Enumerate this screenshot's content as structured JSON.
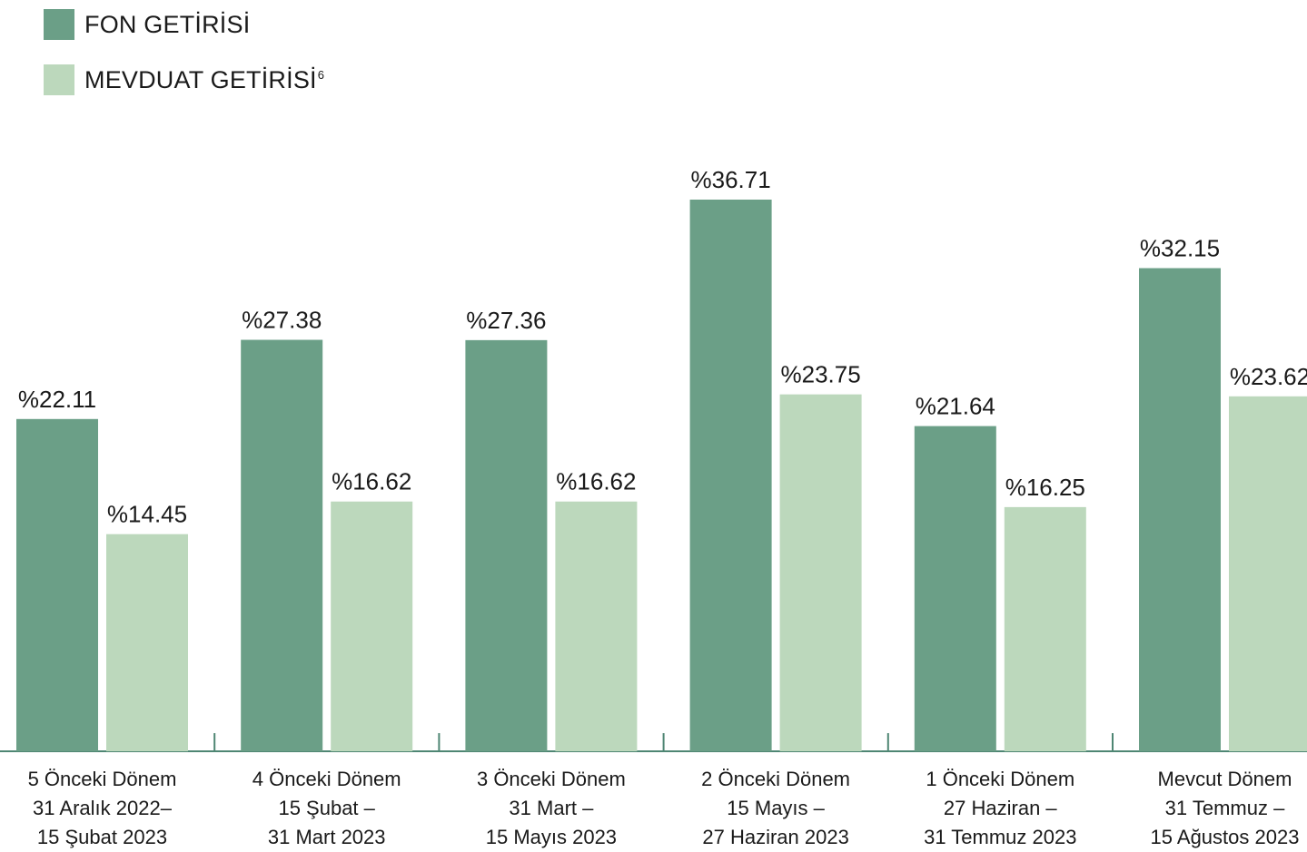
{
  "legend": {
    "fon": {
      "label": "FON GETİRİSİ",
      "color": "#6b9f87"
    },
    "mevduat": {
      "label": "MEVDUAT GETİRİSİ",
      "superscript": "6",
      "color": "#bcd8bc"
    }
  },
  "chart_data": {
    "type": "bar",
    "axis_color": "#4e8673",
    "categories": [
      [
        "5 Önceki Dönem",
        "31 Aralık 2022–",
        "15 Şubat 2023"
      ],
      [
        "4 Önceki Dönem",
        "15 Şubat –",
        "31 Mart 2023"
      ],
      [
        "3 Önceki Dönem",
        "31 Mart –",
        "15 Mayıs 2023"
      ],
      [
        "2 Önceki Dönem",
        "15 Mayıs –",
        "27 Haziran 2023"
      ],
      [
        "1 Önceki Dönem",
        "27 Haziran –",
        "31 Temmuz 2023"
      ],
      [
        "Mevcut Dönem",
        "31 Temmuz –",
        "15 Ağustos 2023"
      ]
    ],
    "series": [
      {
        "name": "FON GETİRİSİ",
        "color": "#6b9f87",
        "values": [
          22.11,
          27.38,
          27.36,
          36.71,
          21.64,
          32.15
        ],
        "labels": [
          "%22.11",
          "%27.38",
          "%27.36",
          "%36.71",
          "%21.64",
          "%32.15"
        ]
      },
      {
        "name": "MEVDUAT GETİRİSİ",
        "color": "#bcd8bc",
        "values": [
          14.45,
          16.62,
          16.62,
          23.75,
          16.25,
          23.62
        ],
        "labels": [
          "%14.45",
          "%16.62",
          "%16.62",
          "%23.75",
          "%16.25",
          "%23.62"
        ]
      }
    ],
    "ylim": [
      0,
      36.71
    ]
  }
}
